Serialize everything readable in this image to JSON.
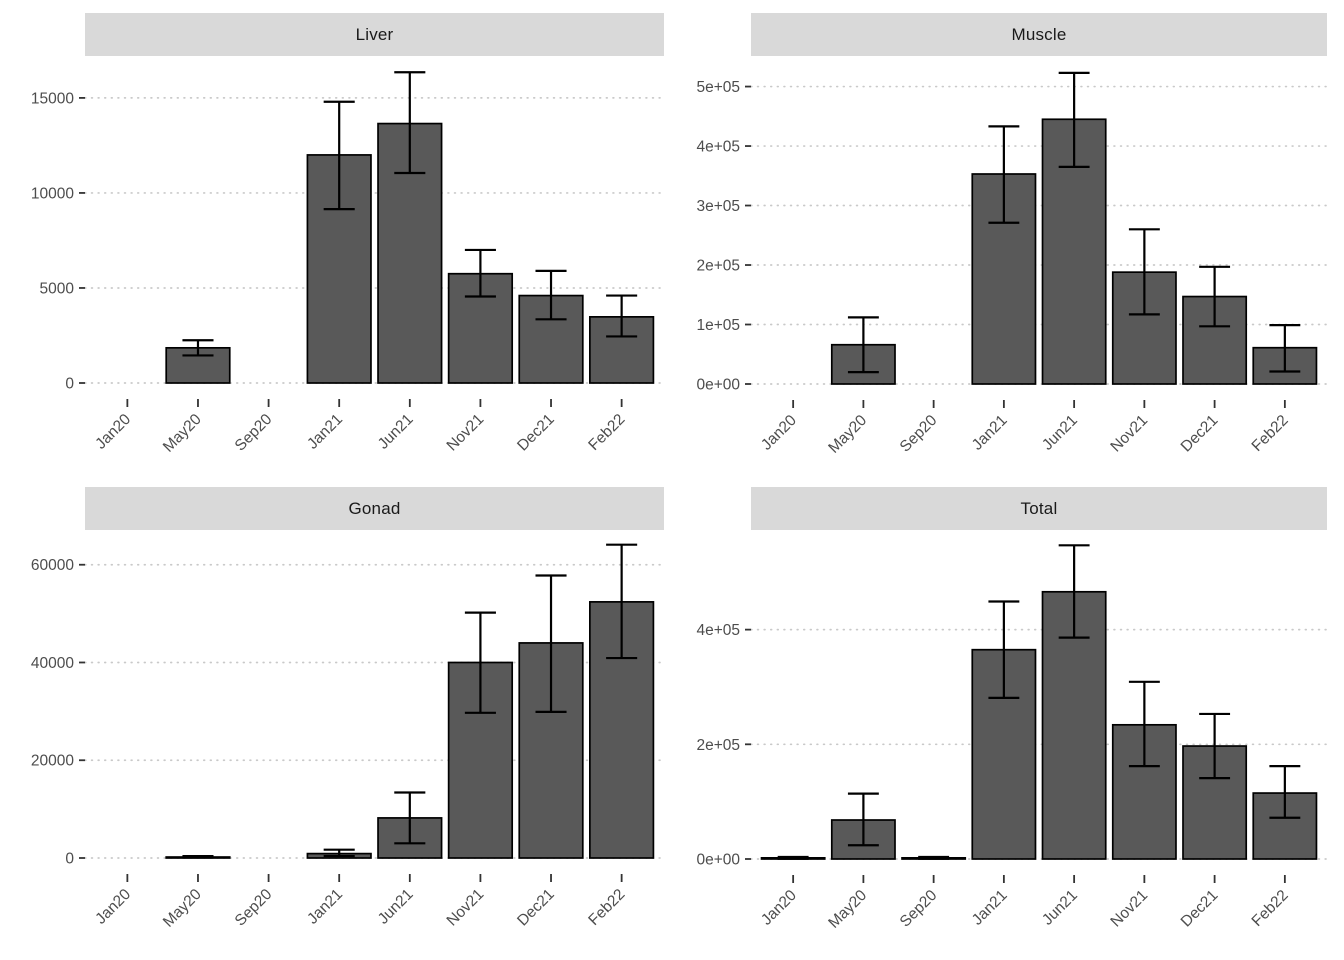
{
  "figure": {
    "kind": "faceted-bar-chart",
    "facet_titles": [
      "Liver",
      "Muscle",
      "Gonad",
      "Total"
    ]
  },
  "colors": {
    "bar_fill": "#595959",
    "bar_stroke": "#000000",
    "errorbar": "#000000",
    "grid": "#C9C9C9",
    "axis_text": "#4D4D4D",
    "tick": "#333333",
    "strip_bg": "#D9D9D9",
    "strip_text": "#1A1A1A",
    "panel_bg": "#FFFFFF"
  },
  "chart_data": [
    {
      "type": "bar",
      "title": "Liver",
      "categories": [
        "Jan20",
        "May20",
        "Sep20",
        "Jan21",
        "Jun21",
        "Nov21",
        "Dec21",
        "Feb22"
      ],
      "values": [
        null,
        1850,
        null,
        12000,
        13650,
        5750,
        4600,
        3480
      ],
      "error_low": [
        null,
        1450,
        null,
        9150,
        11050,
        4550,
        3350,
        2450
      ],
      "error_high": [
        null,
        2250,
        null,
        14800,
        16350,
        7000,
        5900,
        4600
      ],
      "yticks": [
        0,
        5000,
        10000,
        15000
      ],
      "ytick_labels": [
        "0",
        "5000",
        "10000",
        "15000"
      ],
      "ylim": [
        0,
        17100
      ],
      "xlabel": "",
      "ylabel": "",
      "grid": "dotted-major",
      "legend": "none"
    },
    {
      "type": "bar",
      "title": "Muscle",
      "categories": [
        "Jan20",
        "May20",
        "Sep20",
        "Jan21",
        "Jun21",
        "Nov21",
        "Dec21",
        "Feb22"
      ],
      "values": [
        null,
        66000,
        null,
        353000,
        445000,
        188000,
        147000,
        61000
      ],
      "error_low": [
        null,
        20000,
        null,
        271000,
        365000,
        117000,
        97000,
        21000
      ],
      "error_high": [
        null,
        112000,
        null,
        433000,
        523000,
        260000,
        197000,
        99000
      ],
      "yticks": [
        0,
        100000,
        200000,
        300000,
        400000,
        500000
      ],
      "ytick_labels": [
        "0e+00",
        "1e+05",
        "2e+05",
        "3e+05",
        "4e+05",
        "5e+05"
      ],
      "ylim": [
        0,
        548000
      ],
      "xlabel": "",
      "ylabel": "",
      "grid": "dotted-major",
      "legend": "none"
    },
    {
      "type": "bar",
      "title": "Gonad",
      "categories": [
        "Jan20",
        "May20",
        "Sep20",
        "Jan21",
        "Jun21",
        "Nov21",
        "Dec21",
        "Feb22"
      ],
      "values": [
        null,
        200,
        null,
        900,
        8200,
        40000,
        44000,
        52400
      ],
      "error_low": [
        null,
        100,
        null,
        400,
        3000,
        29700,
        29900,
        40900
      ],
      "error_high": [
        null,
        400,
        null,
        1700,
        13400,
        50200,
        57800,
        64100
      ],
      "yticks": [
        0,
        20000,
        40000,
        60000
      ],
      "ytick_labels": [
        "0",
        "20000",
        "40000",
        "60000"
      ],
      "ylim": [
        0,
        66900
      ],
      "xlabel": "",
      "ylabel": "",
      "grid": "dotted-major",
      "legend": "none"
    },
    {
      "type": "bar",
      "title": "Total",
      "categories": [
        "Jan20",
        "May20",
        "Sep20",
        "Jan21",
        "Jun21",
        "Nov21",
        "Dec21",
        "Feb22"
      ],
      "values": [
        2000,
        68000,
        2000,
        365000,
        466000,
        234000,
        197000,
        115000
      ],
      "error_low": [
        500,
        24000,
        500,
        281000,
        386000,
        162000,
        141000,
        72000
      ],
      "error_high": [
        3500,
        114000,
        3500,
        449000,
        547000,
        309000,
        253000,
        162000
      ],
      "yticks": [
        0,
        200000,
        400000
      ],
      "ytick_labels": [
        "0e+00",
        "2e+05",
        "4e+05"
      ],
      "ylim": [
        0,
        572000
      ],
      "xlabel": "",
      "ylabel": "",
      "grid": "dotted-major",
      "legend": "none"
    }
  ]
}
